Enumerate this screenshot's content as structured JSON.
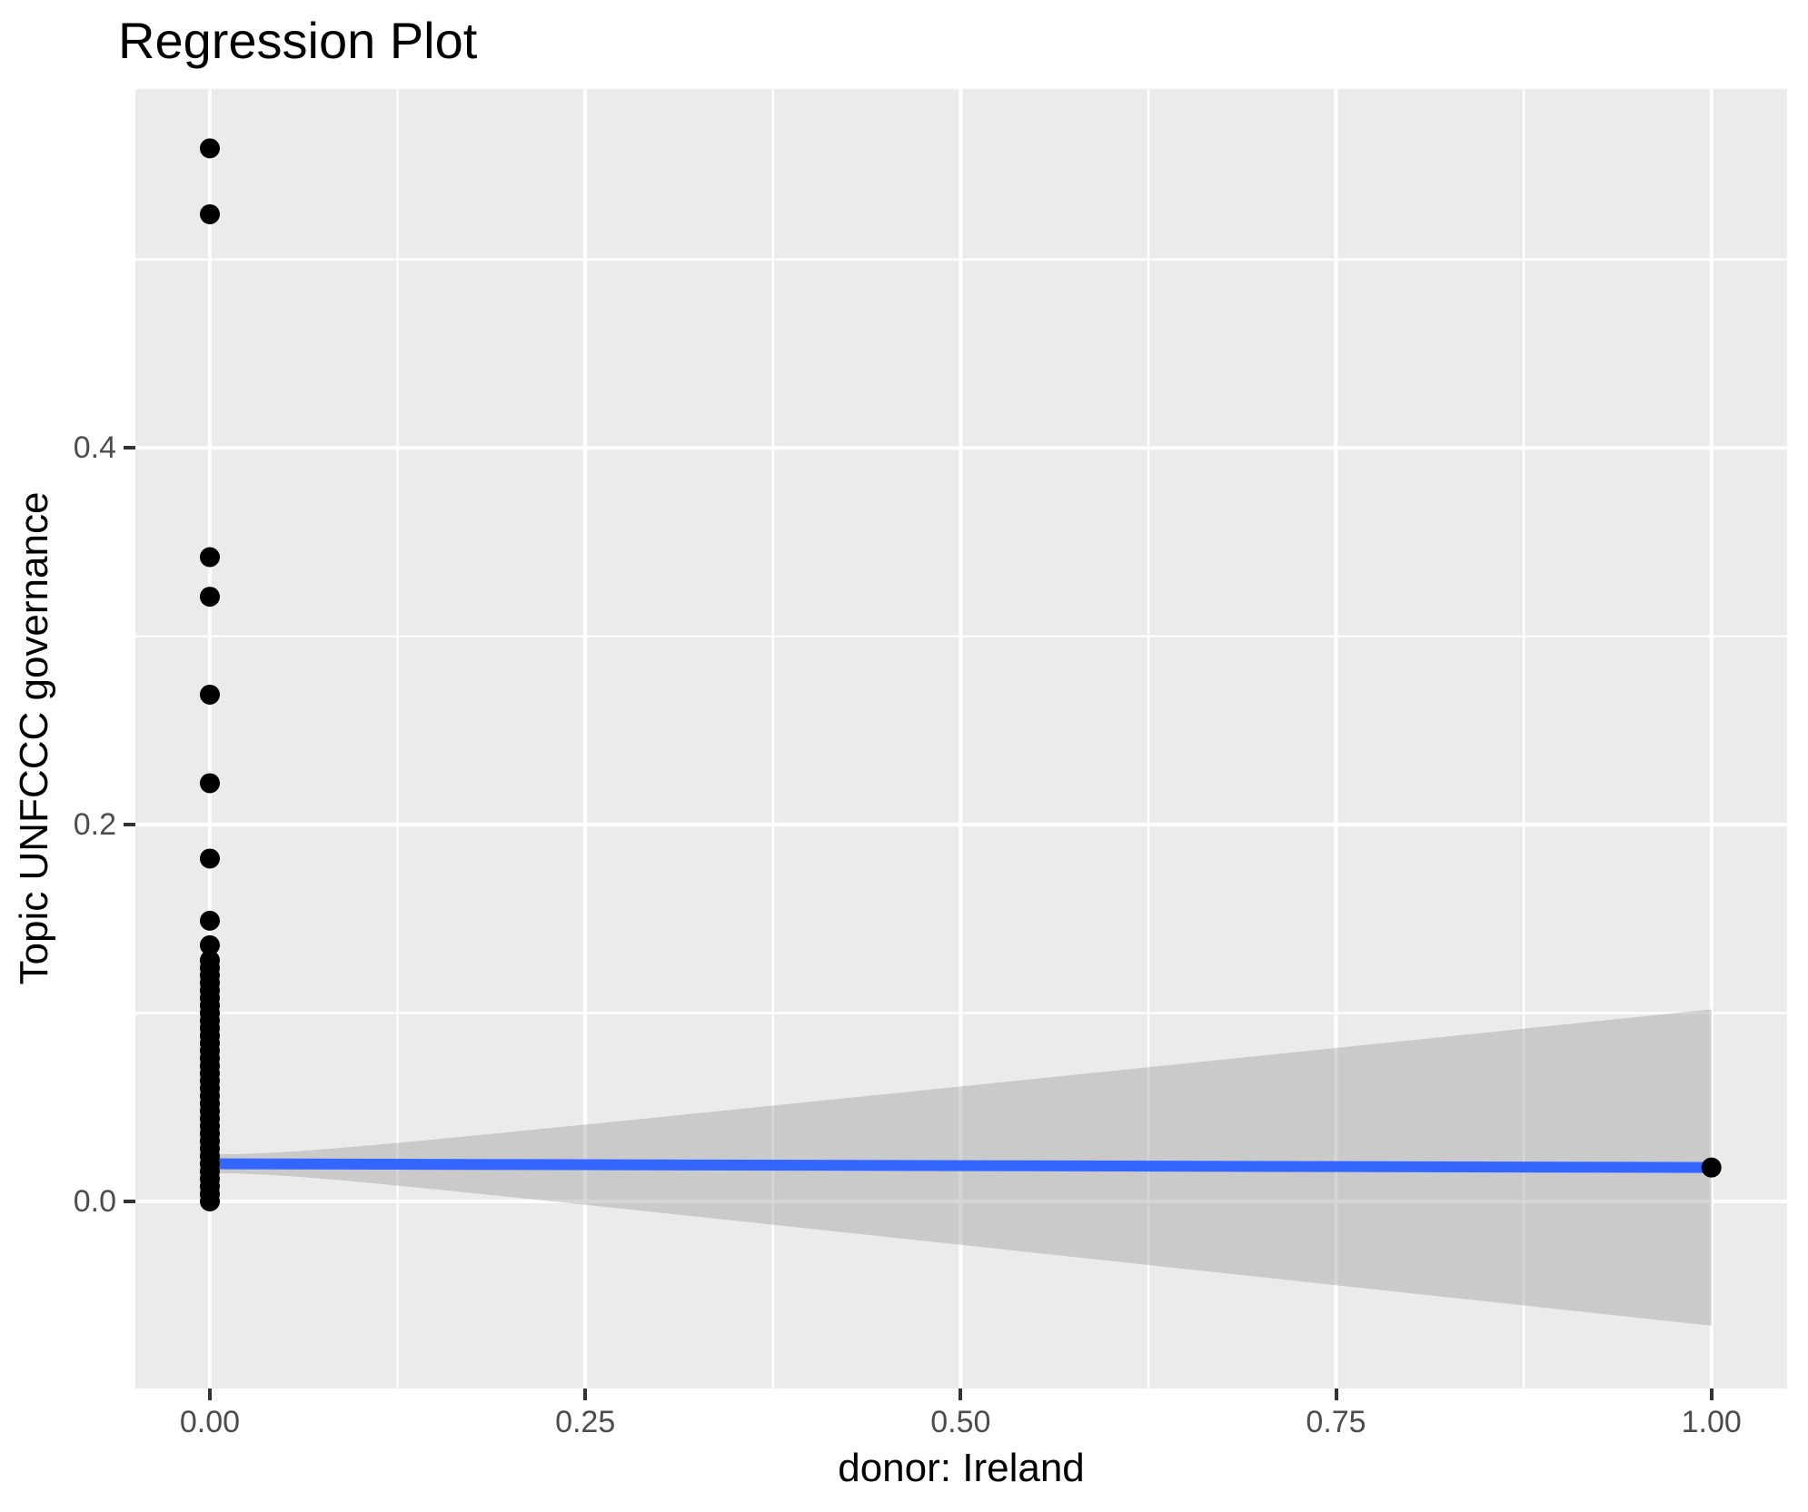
{
  "chart_data": {
    "type": "scatter",
    "title": "Regression Plot",
    "xlabel": "donor: Ireland",
    "ylabel": "Topic UNFCCC governance",
    "xlim": [
      -0.0496,
      1.0504
    ],
    "ylim": [
      -0.0993,
      0.5905
    ],
    "grid": "on",
    "legend": "none",
    "x_ticks": [
      {
        "value": 0.0,
        "label": "0.00"
      },
      {
        "value": 0.25,
        "label": "0.25"
      },
      {
        "value": 0.5,
        "label": "0.50"
      },
      {
        "value": 0.75,
        "label": "0.75"
      },
      {
        "value": 1.0,
        "label": "1.00"
      }
    ],
    "y_ticks": [
      {
        "value": 0.0,
        "label": "0.0"
      },
      {
        "value": 0.2,
        "label": "0.2"
      },
      {
        "value": 0.4,
        "label": "0.4"
      }
    ],
    "x_minor_gridlines": [
      0.125,
      0.375,
      0.625,
      0.875
    ],
    "y_minor_gridlines": [
      0.1,
      0.3,
      0.5
    ],
    "points": {
      "x0_values": [
        0.559,
        0.524,
        0.342,
        0.321,
        0.269,
        0.222,
        0.182,
        0.149,
        0.136,
        0.128,
        0.124,
        0.12,
        0.116,
        0.112,
        0.108,
        0.104,
        0.1,
        0.096,
        0.092,
        0.088,
        0.084,
        0.08,
        0.076,
        0.072,
        0.068,
        0.064,
        0.06,
        0.056,
        0.052,
        0.048,
        0.044,
        0.04,
        0.036,
        0.032,
        0.028,
        0.024,
        0.02,
        0.016,
        0.012,
        0.008,
        0.004,
        0.0
      ],
      "x1_point": {
        "x": 1.0,
        "y": 0.018
      },
      "radius_px": 11
    },
    "regression_line": {
      "x": [
        0.0,
        1.0
      ],
      "y": [
        0.02,
        0.018
      ]
    },
    "ci_band": {
      "x_start": 0.0,
      "x_end": 1.0,
      "center_at_x0": 0.02,
      "center_at_x1": 0.018,
      "halfwidth_at_x0": 0.005,
      "halfwidth_at_x1": 0.0838,
      "upper_at_x1": 0.102,
      "lower_at_x1": -0.065,
      "x_mean": 0.004
    },
    "colors": {
      "panel_background": "#EBEBEB",
      "gridline": "#FFFFFF",
      "point": "#000000",
      "regression_line": "#3366FF",
      "ci_band": "#999999",
      "ci_band_opacity": 0.4,
      "tick_text": "#4D4D4D",
      "tick_mark": "#333333",
      "title_text": "#000000"
    }
  }
}
